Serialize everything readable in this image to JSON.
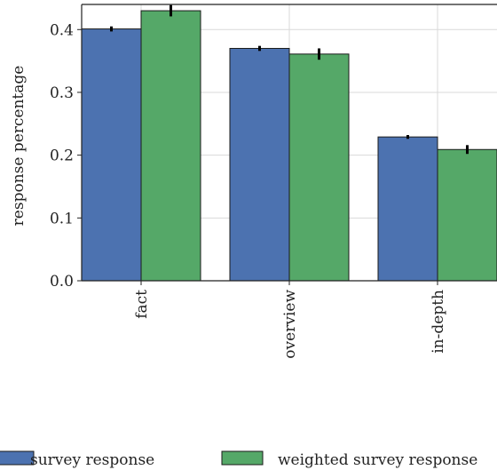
{
  "chart_data": {
    "type": "bar",
    "categories": [
      "fact",
      "overview",
      "in-depth"
    ],
    "series": [
      {
        "name": "survey response",
        "color": "#4c72b0",
        "values": [
          0.401,
          0.37,
          0.229
        ],
        "errors": [
          0.004,
          0.004,
          0.003
        ]
      },
      {
        "name": "weighted survey response",
        "color": "#55a868",
        "values": [
          0.43,
          0.361,
          0.209
        ],
        "errors": [
          0.009,
          0.009,
          0.007
        ]
      }
    ],
    "title": "",
    "xlabel": "",
    "ylabel": "response percentage",
    "ylim": [
      0,
      0.44
    ],
    "yticks": [
      "0.0",
      "0.1",
      "0.2",
      "0.3",
      "0.4"
    ],
    "grid": true,
    "legend_position": "bottom"
  }
}
